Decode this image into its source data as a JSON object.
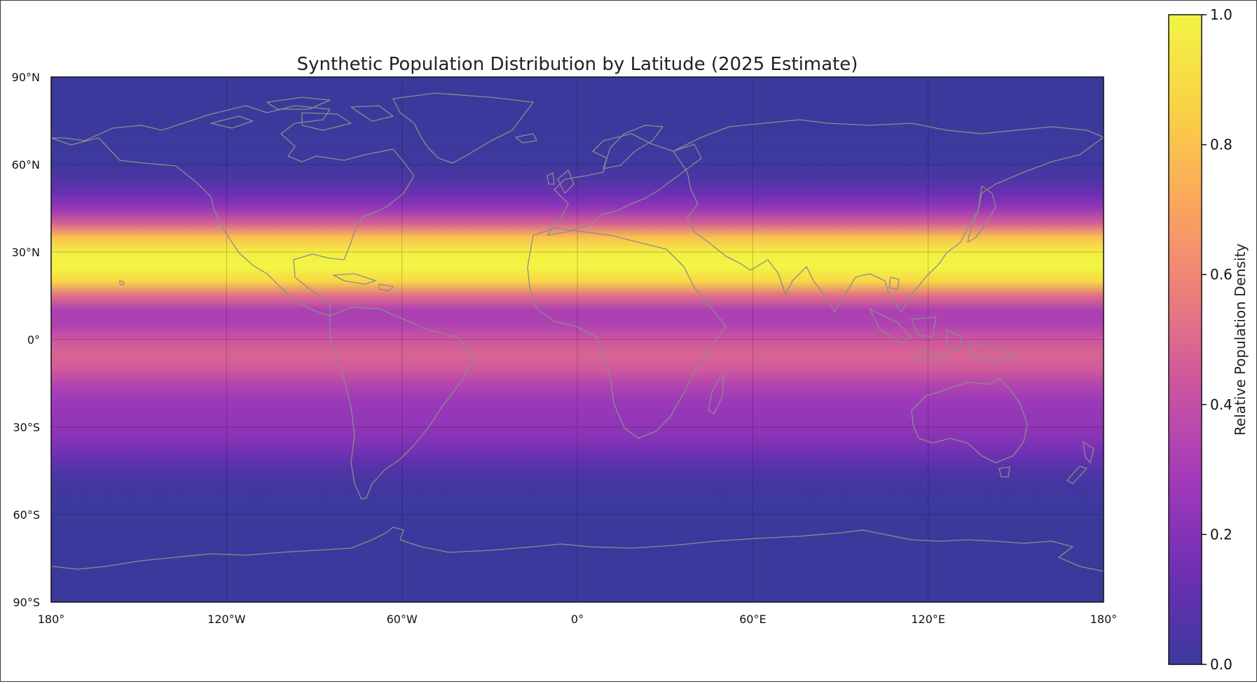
{
  "chart_data": {
    "type": "heatmap",
    "title": "Synthetic Population Distribution by Latitude (2025 Estimate)",
    "xlabel": "",
    "ylabel": "",
    "projection": "equirectangular",
    "xlim": [
      -180,
      180
    ],
    "ylim": [
      -90,
      90
    ],
    "grid": true,
    "x_ticks": [
      -180,
      -120,
      -60,
      0,
      60,
      120,
      180
    ],
    "x_tick_labels": [
      "180°",
      "120°W",
      "60°W",
      "0°",
      "60°E",
      "120°E",
      "180°"
    ],
    "y_ticks": [
      90,
      60,
      30,
      0,
      -30,
      -60,
      -90
    ],
    "y_tick_labels": [
      "90°N",
      "60°N",
      "30°N",
      "0°",
      "30°S",
      "60°S",
      "90°S"
    ],
    "density_profile": {
      "latitude": [
        90,
        75,
        60,
        55,
        50,
        45,
        40,
        35,
        30,
        25,
        20,
        15,
        10,
        5,
        0,
        -5,
        -10,
        -15,
        -20,
        -25,
        -30,
        -35,
        -40,
        -45,
        -50,
        -60,
        -75,
        -90
      ],
      "value": [
        0.0,
        0.0,
        0.01,
        0.05,
        0.13,
        0.25,
        0.46,
        0.8,
        0.97,
        1.0,
        0.88,
        0.52,
        0.32,
        0.33,
        0.43,
        0.48,
        0.45,
        0.35,
        0.28,
        0.25,
        0.24,
        0.2,
        0.13,
        0.06,
        0.02,
        0.0,
        0.0,
        0.0
      ]
    },
    "colormap": "plasma",
    "colormap_stops": [
      "#3a3a9c",
      "#6f2fb4",
      "#a23ab9",
      "#cc55a0",
      "#ec7e7b",
      "#fba85c",
      "#f9d245",
      "#f2f544"
    ],
    "colorbar": {
      "label": "Relative Population Density",
      "range": [
        0,
        1
      ],
      "ticks": [
        "0.0",
        "0.2",
        "0.4",
        "0.6",
        "0.8",
        "1.0"
      ],
      "position": "right"
    },
    "coastline_color": "#8c8c8c"
  }
}
